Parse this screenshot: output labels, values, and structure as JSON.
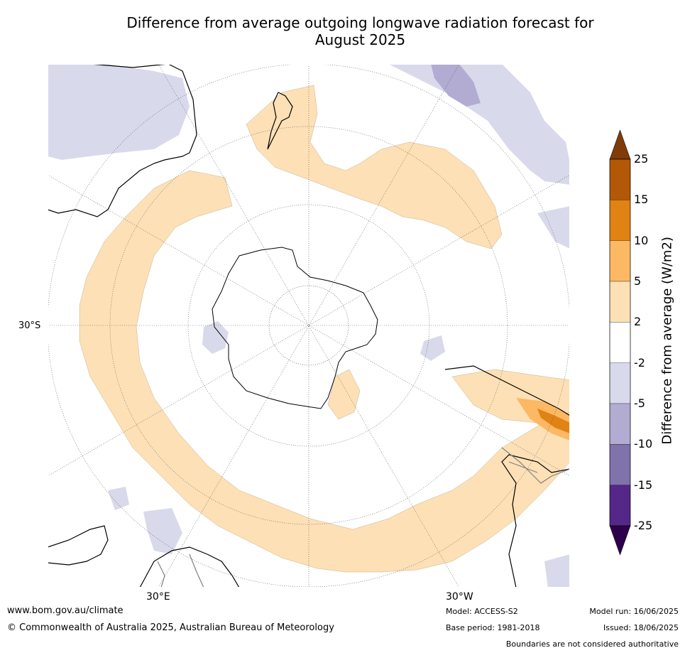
{
  "title_line1": "Difference from average outgoing longwave radiation forecast for",
  "title_line2": "August 2025",
  "map": {
    "projection": "south-polar stereographic",
    "lat_label": "30°S",
    "lon_labels": [
      "30°E",
      "30°W"
    ],
    "colors": {
      "pos_2_5": "#fde0b6",
      "pos_5_10": "#fdb863",
      "pos_10_15": "#e08214",
      "pos_15_25": "#b35806",
      "neg_2_5": "#d8daeb",
      "neg_5_10": "#b2abd2",
      "coast": "#000000",
      "border": "#808080",
      "grid": "#555555"
    }
  },
  "colorbar": {
    "label": "Difference from average (W/m2)",
    "ticks": [
      "25",
      "15",
      "10",
      "5",
      "2",
      "-2",
      "-5",
      "-10",
      "-15",
      "-25"
    ],
    "segments": [
      "#b35806",
      "#e08214",
      "#fdb863",
      "#fee0b6",
      "#ffffff",
      "#d8daeb",
      "#b2abd2",
      "#8073ac",
      "#542788"
    ],
    "extend_top": "#7f3b08",
    "extend_bottom": "#2d004b"
  },
  "footer": {
    "url": "www.bom.gov.au/climate",
    "copyright": "© Commonwealth of Australia 2025, Australian Bureau of Meteorology",
    "model": "Model: ACCESS-S2",
    "base_period": "Base period: 1981-2018",
    "model_run": "Model run: 16/06/2025",
    "issued": "Issued: 18/06/2025",
    "disclaimer": "Boundaries are not considered authoritative"
  }
}
